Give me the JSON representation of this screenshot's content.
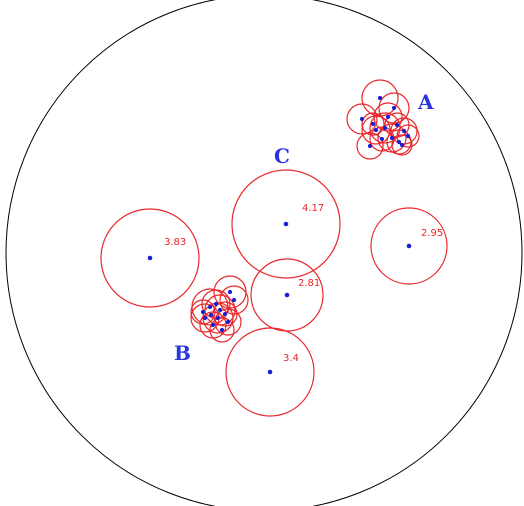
{
  "colors": {
    "boundary": "#000000",
    "circle": "#e8272a",
    "point": "#1a1fd6",
    "cluster_label": "#2a35e0",
    "radius_label": "#e8272a"
  },
  "clusters": [
    {
      "id": "a",
      "label": "A"
    },
    {
      "id": "b",
      "label": "B"
    },
    {
      "id": "c",
      "label": "C"
    }
  ],
  "labeled_circles": [
    {
      "id": "c1",
      "radius_label": "4.17"
    },
    {
      "id": "c2",
      "radius_label": "3.83"
    },
    {
      "id": "c3",
      "radius_label": "2.95"
    },
    {
      "id": "c4",
      "radius_label": "2.81"
    },
    {
      "id": "c5",
      "radius_label": "3.4"
    }
  ]
}
